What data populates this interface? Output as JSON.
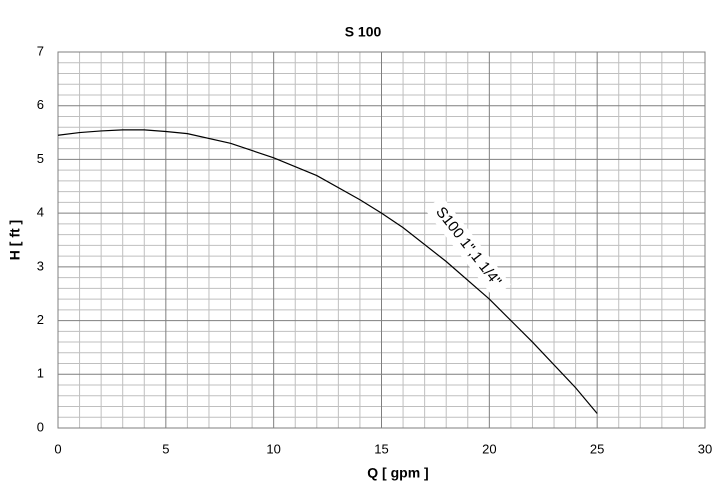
{
  "chart_data": {
    "type": "line",
    "title": "S 100",
    "x_label": "Q [ gpm ]",
    "y_label": "H [ ft ]",
    "annotation": "S100 1\",1 1/4\"",
    "x": [
      0,
      1,
      2,
      3,
      4,
      5,
      6,
      8,
      10,
      12,
      14,
      15,
      16,
      18,
      20,
      22,
      24,
      25
    ],
    "series": [
      {
        "name": "S100 1\",1 1/4\"",
        "color": "#000000",
        "values": [
          5.45,
          5.5,
          5.53,
          5.55,
          5.55,
          5.52,
          5.48,
          5.3,
          5.03,
          4.7,
          4.25,
          4.0,
          3.73,
          3.1,
          2.4,
          1.6,
          0.75,
          0.27
        ]
      }
    ],
    "xlim": [
      0,
      30
    ],
    "xticks": [
      0,
      5,
      10,
      15,
      20,
      25,
      30
    ],
    "ylim": [
      0,
      7
    ],
    "yticks": [
      0,
      1,
      2,
      3,
      4,
      5,
      6,
      7
    ],
    "grid": true
  }
}
